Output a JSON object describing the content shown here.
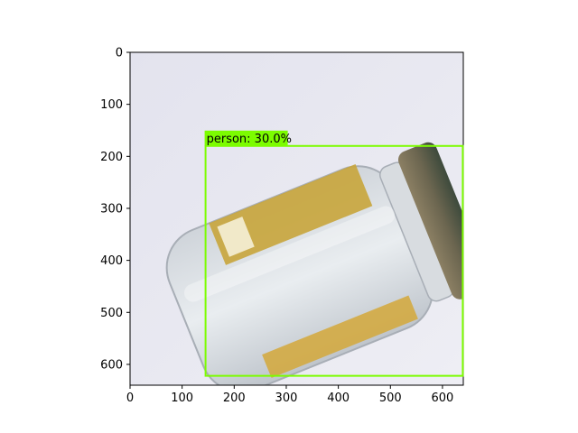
{
  "image": {
    "description_colors": {
      "background": "#e7e7ef",
      "glass": "#d9dde2",
      "label_gold": "#c4a23a",
      "lid": "#6f6a55"
    },
    "width_units": 640,
    "height_units": 640
  },
  "axes": {
    "x_ticks": [
      0,
      100,
      200,
      300,
      400,
      500,
      600
    ],
    "y_ticks": [
      0,
      100,
      200,
      300,
      400,
      500,
      600
    ],
    "xlim": [
      0,
      640
    ],
    "ylim": [
      640,
      0
    ]
  },
  "detections": [
    {
      "label": "person: 30.0%",
      "color": "#7cfc00",
      "box": {
        "x1": 145,
        "y1": 180,
        "x2": 639,
        "y2": 622
      }
    }
  ]
}
